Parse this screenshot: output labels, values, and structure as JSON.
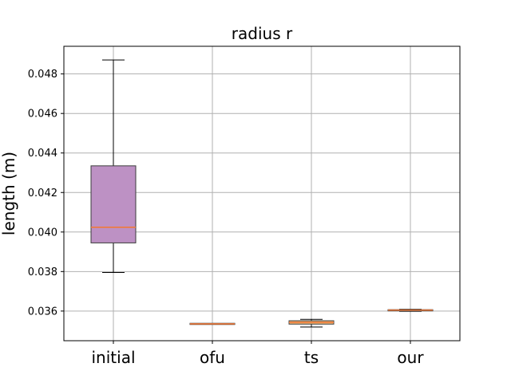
{
  "chart_data": {
    "type": "box",
    "title": "radius r",
    "ylabel": "length (m)",
    "xlabel": "",
    "categories": [
      "initial",
      "ofu",
      "ts",
      "our"
    ],
    "yticks": [
      "0.036",
      "0.038",
      "0.040",
      "0.042",
      "0.044",
      "0.046",
      "0.048"
    ],
    "ylim": [
      0.0345,
      0.0494
    ],
    "grid": true,
    "boxes": [
      {
        "category": "initial",
        "whisker_low": 0.03795,
        "q1": 0.03945,
        "median": 0.04024,
        "q3": 0.04335,
        "whisker_high": 0.04871,
        "fill": "#bd91c4"
      },
      {
        "category": "ofu",
        "whisker_low": 0.03533,
        "q1": 0.03533,
        "median": 0.03535,
        "q3": 0.03537,
        "whisker_high": 0.03537,
        "fill": "#d8e49a"
      },
      {
        "category": "ts",
        "whisker_low": 0.03519,
        "q1": 0.03534,
        "median": 0.03543,
        "q3": 0.03551,
        "whisker_high": 0.03558,
        "fill": "#f4c07a"
      },
      {
        "category": "our",
        "whisker_low": 0.03599,
        "q1": 0.03601,
        "median": 0.03605,
        "q3": 0.03607,
        "whisker_high": 0.03609,
        "fill": "#f4b88a"
      }
    ],
    "colors": {
      "median": "#f07a3a",
      "box_edge": "#3c3c3c",
      "grid": "#b0b0b0"
    }
  }
}
